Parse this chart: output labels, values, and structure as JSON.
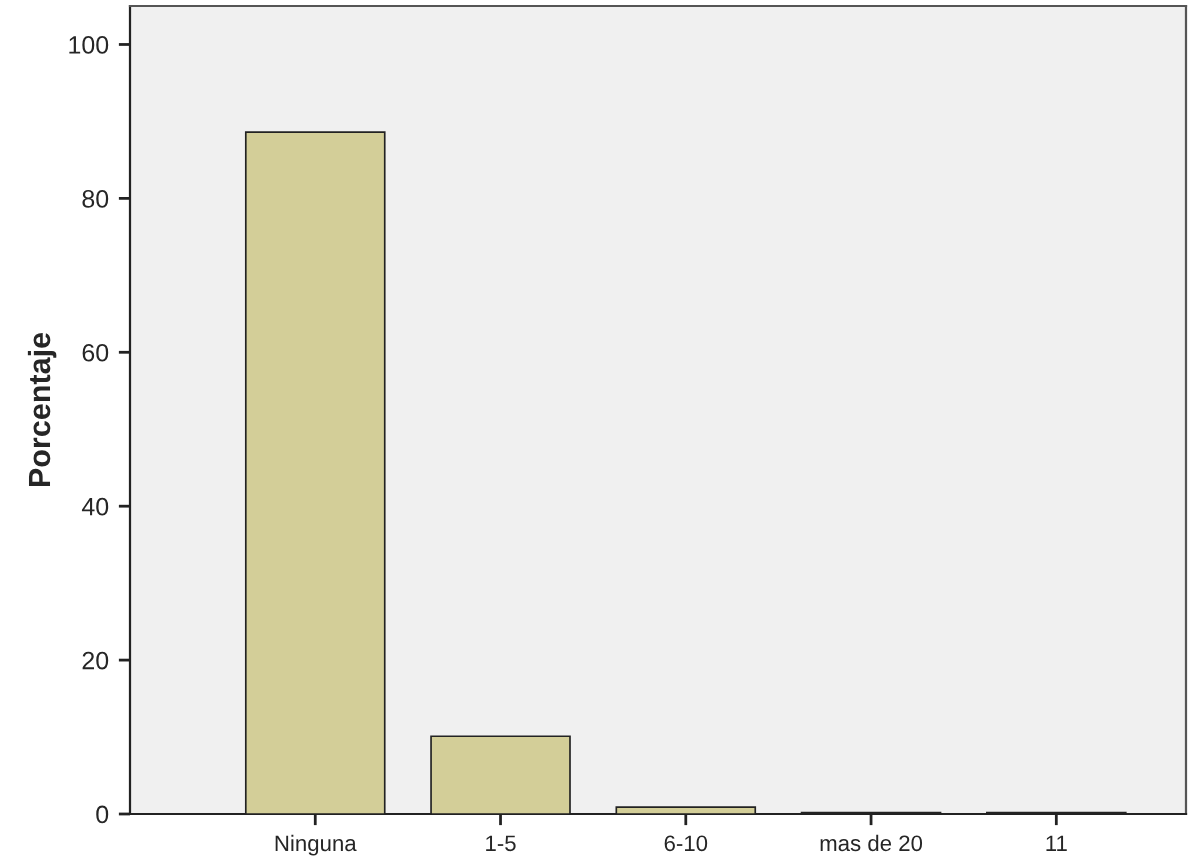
{
  "chart_data": {
    "type": "bar",
    "ylabel": "Porcentaje",
    "categories": [
      "Ninguna",
      "1-5",
      "6-10",
      "mas de 20",
      "11"
    ],
    "values": [
      88.6,
      10.1,
      0.9,
      0.2,
      0.2
    ],
    "color": "#d3ce98",
    "ylim": [
      0,
      105
    ],
    "yticks": [
      0,
      20,
      40,
      60,
      80,
      100
    ],
    "grid": false
  }
}
